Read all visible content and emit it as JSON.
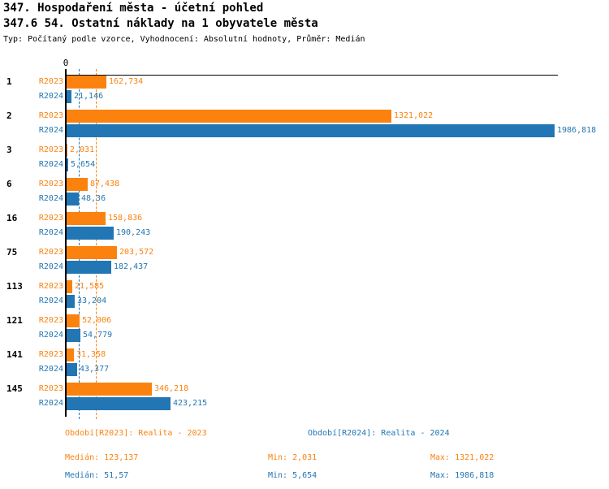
{
  "header": {
    "title": "347. Hospodaření města - účetní pohled",
    "subtitle": "347.6 54. Ostatní náklady na 1 obyvatele města",
    "meta": "Typ: Počítaný podle vzorce, Vyhodnocení: Absolutní hodnoty, Průměr: Medián"
  },
  "colors": {
    "r2023": "#FB820F",
    "r2024": "#2276B4",
    "axis": "#000000",
    "category_label": "#000000",
    "background": "#FFFFFF"
  },
  "chart_data": {
    "type": "bar",
    "orientation": "horizontal",
    "x_axis": {
      "zero_label": "0",
      "min": 0,
      "max": 1990,
      "gridlines": false
    },
    "median_lines": true,
    "legend_position": "bottom",
    "categories": [
      "1",
      "2",
      "3",
      "6",
      "16",
      "75",
      "113",
      "121",
      "141",
      "145"
    ],
    "series": [
      {
        "name": "R2023",
        "color": "#FB820F",
        "legend": "Období[R2023]: Realita - 2023",
        "values": [
          162.734,
          1321.022,
          2.031,
          87.438,
          158.836,
          203.572,
          21.585,
          52.006,
          31.358,
          346.218
        ],
        "value_labels": [
          "162,734",
          "1321,022",
          "2,031",
          "87,438",
          "158,836",
          "203,572",
          "21,585",
          "52,006",
          "31,358",
          "346,218"
        ],
        "median_value": 123.137,
        "stats": {
          "median": "Medián: 123,137",
          "min": "Min: 2,031",
          "max": "Max: 1321,022"
        }
      },
      {
        "name": "R2024",
        "color": "#2276B4",
        "legend": "Období[R2024]: Realita - 2024",
        "values": [
          21.146,
          1986.818,
          5.654,
          48.36,
          190.243,
          182.437,
          33.204,
          54.779,
          43.377,
          423.215
        ],
        "value_labels": [
          "21,146",
          "1986,818",
          "5,654",
          "48,36",
          "190,243",
          "182,437",
          "33,204",
          "54,779",
          "43,377",
          "423,215"
        ],
        "median_value": 51.57,
        "stats": {
          "median": "Medián: 51,57",
          "min": "Min: 5,654",
          "max": "Max: 1986,818"
        }
      }
    ]
  }
}
